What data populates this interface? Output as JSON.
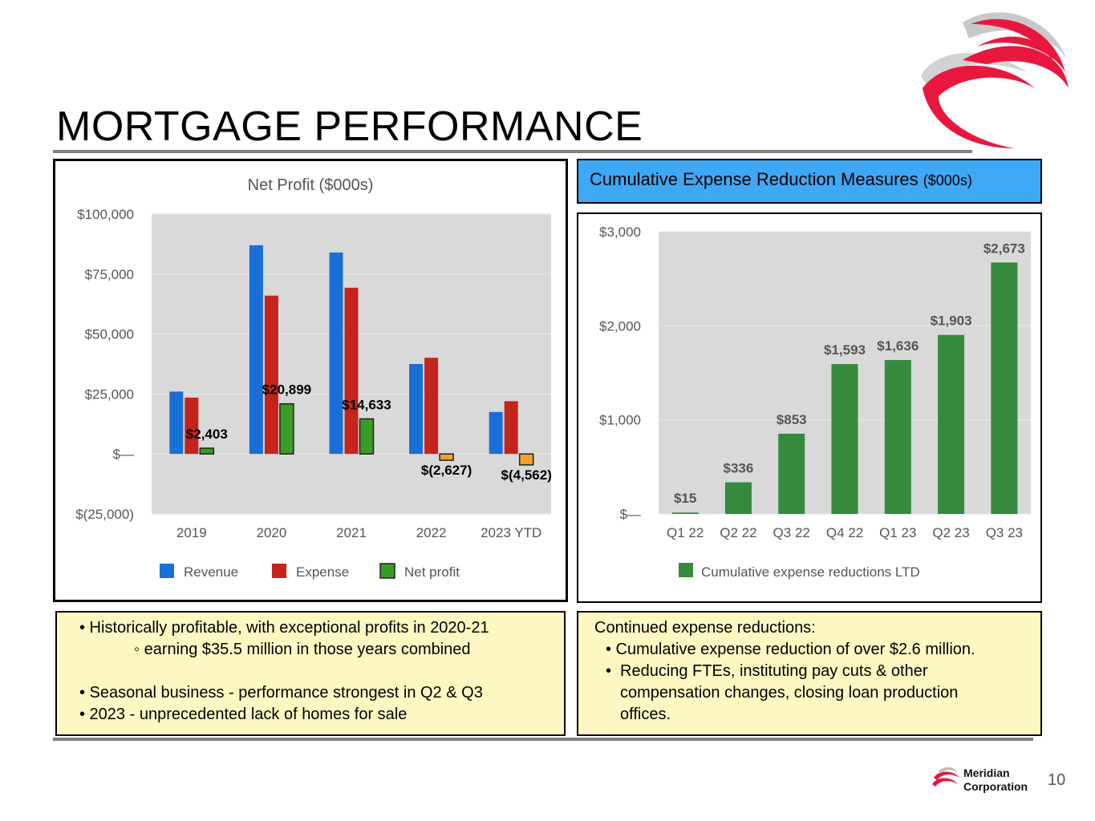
{
  "slide": {
    "title": "MORTGAGE PERFORMANCE",
    "page_number": "10",
    "brand_line1": "Meridian",
    "brand_line2": "Corporation",
    "logo_icon": "meridian-swirl-logo-icon"
  },
  "expense_header": {
    "title": "Cumulative Expense Reduction Measures",
    "unit": "($000s)"
  },
  "left_note": {
    "bullets": [
      "• Historically profitable, with exceptional profits in 2020-21",
      "◦ earning $35.5 million in those years combined",
      "• Seasonal business - performance strongest in Q2 & Q3",
      "• 2023 -  unprecedented lack of homes for sale"
    ]
  },
  "right_note": {
    "heading": "Continued expense reductions:",
    "bullets": [
      "• Cumulative expense reduction of over $2.6 million.",
      "•",
      "Reducing FTEs, instituting pay cuts & other",
      "compensation changes, closing loan production",
      "offices."
    ]
  },
  "colors": {
    "revenue": "#1a6fd6",
    "expense": "#c4241c",
    "net_profit_positive": "#3a9b28",
    "net_profit_negative": "#f0a22a",
    "cumulative_bar": "#358a3d",
    "header_blue": "#3fa8f4",
    "note_yellow": "#fff7c2",
    "plot_bg": "#d9d9d9",
    "logo_red": "#e8173e"
  },
  "chart_data": [
    {
      "type": "bar",
      "title": "Net Profit ($000s)",
      "categories": [
        "2019",
        "2020",
        "2021",
        "2022",
        "2023 YTD"
      ],
      "series": [
        {
          "name": "Revenue",
          "values": [
            26000,
            87000,
            84000,
            37500,
            17500
          ]
        },
        {
          "name": "Expense",
          "values": [
            23500,
            66000,
            69300,
            40100,
            22000
          ]
        },
        {
          "name": "Net profit",
          "values": [
            2403,
            20899,
            14633,
            -2627,
            -4562
          ]
        }
      ],
      "data_labels": [
        "$2,403",
        "$20,899",
        "$14,633",
        "$(2,627)",
        "$(4,562)"
      ],
      "yticks": [
        100000,
        75000,
        50000,
        25000,
        0,
        -25000
      ],
      "ytick_labels": [
        "$100,000",
        "$75,000",
        "$50,000",
        "$25,000",
        "$—",
        "$(25,000)"
      ],
      "ylim": [
        -25000,
        100000
      ],
      "legend": [
        "Revenue",
        "Expense",
        "Net profit"
      ],
      "legend_position": "bottom",
      "xlabel": "",
      "ylabel": ""
    },
    {
      "type": "bar",
      "title": "",
      "categories": [
        "Q1 22",
        "Q2 22",
        "Q3 22",
        "Q4 22",
        "Q1 23",
        "Q2 23",
        "Q3 23"
      ],
      "series": [
        {
          "name": "Cumulative expense reductions LTD",
          "values": [
            15,
            336,
            853,
            1593,
            1636,
            1903,
            2673
          ]
        }
      ],
      "data_labels": [
        "$15",
        "$336",
        "$853",
        "$1,593",
        "$1,636",
        "$1,903",
        "$2,673"
      ],
      "yticks": [
        3000,
        2000,
        1000,
        0
      ],
      "ytick_labels": [
        "$3,000",
        "$2,000",
        "$1,000",
        "$—"
      ],
      "ylim": [
        0,
        3000
      ],
      "legend": [
        "Cumulative expense reductions LTD"
      ],
      "legend_position": "bottom",
      "xlabel": "",
      "ylabel": ""
    }
  ]
}
